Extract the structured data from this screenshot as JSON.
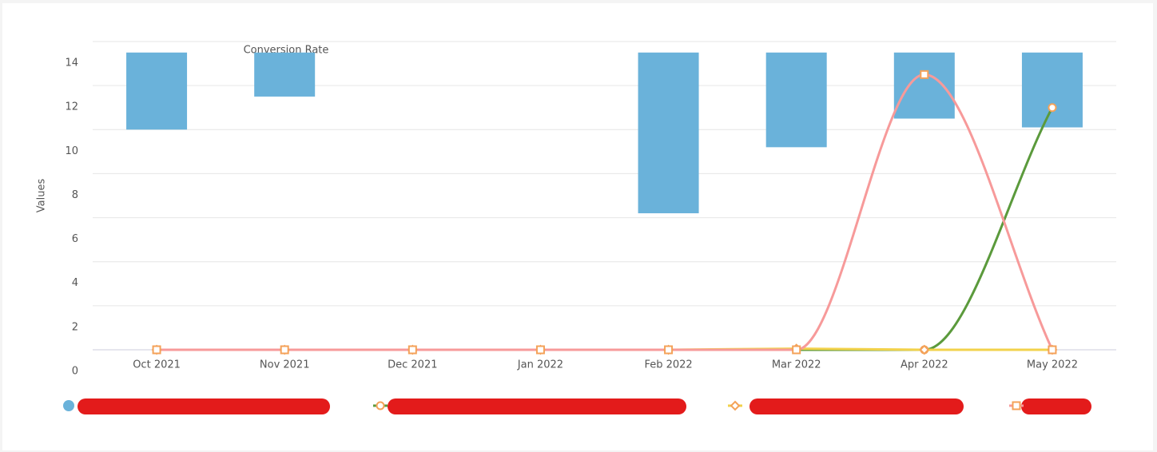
{
  "chart_data": {
    "type": "combo",
    "annotation": "Conversion Rate",
    "y_label": "Values",
    "categories": [
      "Oct 2021",
      "Nov 2021",
      "Dec 2021",
      "Jan 2022",
      "Feb 2022",
      "Mar 2022",
      "Apr 2022",
      "May 2022"
    ],
    "ylim": [
      0,
      14
    ],
    "yticks": [
      0,
      2,
      4,
      6,
      8,
      10,
      12,
      14
    ],
    "grid": true,
    "series": [
      {
        "type": "range-bar",
        "color": "#6ab2da",
        "marker": "circle",
        "high": [
          13.5,
          13.5,
          null,
          null,
          13.5,
          13.5,
          13.5,
          13.5
        ],
        "low": [
          10,
          11.5,
          null,
          null,
          6.2,
          9.2,
          10.5,
          10.1
        ]
      },
      {
        "type": "line",
        "color": "#5b9a3c",
        "marker": "circle",
        "values": [
          0,
          0,
          0,
          0,
          0,
          0,
          0,
          11
        ]
      },
      {
        "type": "line",
        "color": "#f2d24b",
        "marker": "diamond",
        "values": [
          0,
          0,
          0,
          0,
          0,
          0.05,
          0,
          0
        ]
      },
      {
        "type": "line",
        "color": "#f79a9a",
        "marker": "square",
        "values": [
          0,
          0,
          0,
          0,
          0,
          0,
          12.5,
          0
        ]
      }
    ]
  }
}
